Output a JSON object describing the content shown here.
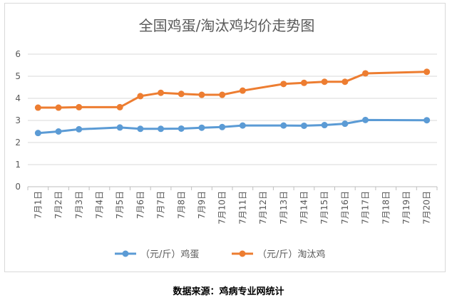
{
  "chart_data": {
    "type": "line",
    "title": "全国鸡蛋/淘汰鸡均价走势图",
    "categories": [
      "7月1日",
      "7月2日",
      "7月3日",
      "7月4日",
      "7月5日",
      "7月6日",
      "7月7日",
      "7月8日",
      "7月9日",
      "7月10日",
      "7月11日",
      "7月12日",
      "7月13日",
      "7月14日",
      "7月15日",
      "7月16日",
      "7月17日",
      "7月18日",
      "7月19日",
      "7月20日"
    ],
    "series": [
      {
        "name": "（元/斤）鸡蛋",
        "color": "#5b9bd5",
        "points": [
          [
            0,
            2.43
          ],
          [
            1,
            2.5
          ],
          [
            2,
            2.6
          ],
          [
            4,
            2.68
          ],
          [
            5,
            2.62
          ],
          [
            6,
            2.62
          ],
          [
            7,
            2.63
          ],
          [
            8,
            2.67
          ],
          [
            9,
            2.7
          ],
          [
            10,
            2.77
          ],
          [
            12,
            2.77
          ],
          [
            13,
            2.76
          ],
          [
            14,
            2.79
          ],
          [
            15,
            2.85
          ],
          [
            16,
            3.02
          ],
          [
            19,
            3.01
          ]
        ]
      },
      {
        "name": "（元/斤）淘汰鸡",
        "color": "#ed7d31",
        "points": [
          [
            0,
            3.58
          ],
          [
            1,
            3.58
          ],
          [
            2,
            3.6
          ],
          [
            4,
            3.6
          ],
          [
            5,
            4.1
          ],
          [
            6,
            4.25
          ],
          [
            7,
            4.2
          ],
          [
            8,
            4.16
          ],
          [
            9,
            4.16
          ],
          [
            10,
            4.35
          ],
          [
            12,
            4.65
          ],
          [
            13,
            4.7
          ],
          [
            14,
            4.75
          ],
          [
            15,
            4.75
          ],
          [
            16,
            5.13
          ],
          [
            19,
            5.2
          ]
        ]
      }
    ],
    "ylim": [
      0,
      6
    ],
    "yticks": [
      "0",
      "1",
      "2",
      "3",
      "4",
      "5",
      "6"
    ],
    "grid": true,
    "legend": "bottom"
  },
  "footer": {
    "source": "数据来源：鸡病专业网统计"
  }
}
